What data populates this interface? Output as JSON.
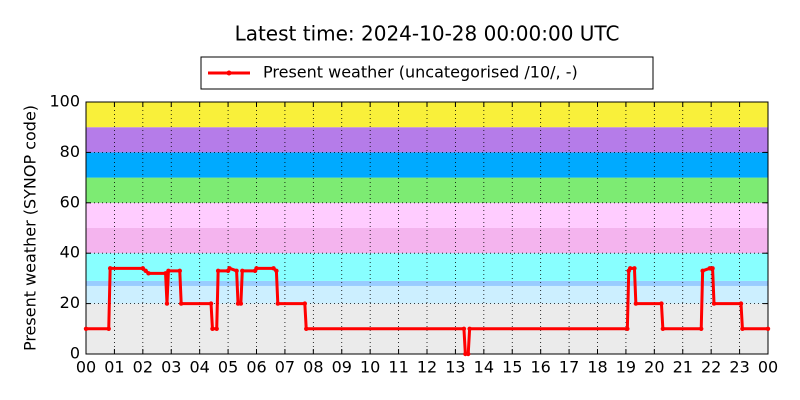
{
  "chart_data": {
    "type": "line",
    "title": "Latest time: 2024-10-28 00:00:00 UTC",
    "ylabel": "Present weather (SYNOP code)",
    "xlim": [
      0,
      24
    ],
    "xticks": [
      {
        "value": 0,
        "label": "00"
      },
      {
        "value": 1,
        "label": "01"
      },
      {
        "value": 2,
        "label": "02"
      },
      {
        "value": 3,
        "label": "03"
      },
      {
        "value": 4,
        "label": "04"
      },
      {
        "value": 5,
        "label": "05"
      },
      {
        "value": 6,
        "label": "06"
      },
      {
        "value": 7,
        "label": "07"
      },
      {
        "value": 8,
        "label": "08"
      },
      {
        "value": 9,
        "label": "09"
      },
      {
        "value": 10,
        "label": "10"
      },
      {
        "value": 11,
        "label": "11"
      },
      {
        "value": 12,
        "label": "12"
      },
      {
        "value": 13,
        "label": "13"
      },
      {
        "value": 14,
        "label": "14"
      },
      {
        "value": 15,
        "label": "15"
      },
      {
        "value": 16,
        "label": "16"
      },
      {
        "value": 17,
        "label": "17"
      },
      {
        "value": 18,
        "label": "18"
      },
      {
        "value": 19,
        "label": "19"
      },
      {
        "value": 20,
        "label": "20"
      },
      {
        "value": 21,
        "label": "21"
      },
      {
        "value": 22,
        "label": "22"
      },
      {
        "value": 23,
        "label": "23"
      },
      {
        "value": 24,
        "label": "00"
      }
    ],
    "ylim": [
      0,
      100
    ],
    "yticks": [
      0,
      20,
      40,
      60,
      80,
      100
    ],
    "grid": true,
    "bands": [
      {
        "from": 0,
        "to": 20,
        "color": "#ebebeb"
      },
      {
        "from": 20,
        "to": 27,
        "color": "#ccefff"
      },
      {
        "from": 27,
        "to": 29,
        "color": "#99ccff"
      },
      {
        "from": 29,
        "to": 40,
        "color": "#88ffff"
      },
      {
        "from": 40,
        "to": 50,
        "color": "#f4b4ee"
      },
      {
        "from": 50,
        "to": 60,
        "color": "#ffccff"
      },
      {
        "from": 60,
        "to": 70,
        "color": "#7deb73"
      },
      {
        "from": 70,
        "to": 80,
        "color": "#00aaff"
      },
      {
        "from": 80,
        "to": 90,
        "color": "#b57ce9"
      },
      {
        "from": 90,
        "to": 100,
        "color": "#f9f03a"
      }
    ],
    "series": [
      {
        "name": "Present weather (uncategorised /10/, -)",
        "color": "#ff0000",
        "x": [
          0,
          0.8,
          0.85,
          2.0,
          2.1,
          2.2,
          2.8,
          2.85,
          2.9,
          3.3,
          3.35,
          4.4,
          4.45,
          4.6,
          4.65,
          5.0,
          5.05,
          5.3,
          5.35,
          5.45,
          5.5,
          5.95,
          6.0,
          6.6,
          6.7,
          6.75,
          7.7,
          7.75,
          13.3,
          13.35,
          13.45,
          13.5,
          19.05,
          19.1,
          19.15,
          19.3,
          19.35,
          20.25,
          20.3,
          21.65,
          21.7,
          21.95,
          22.05,
          22.1,
          23.05,
          23.1,
          24
        ],
        "values": [
          10,
          10,
          34,
          34,
          33,
          32,
          32,
          20,
          33,
          33,
          20,
          20,
          10,
          10,
          33,
          33,
          34,
          33,
          20,
          20,
          33,
          33,
          34,
          34,
          33,
          20,
          20,
          10,
          10,
          0,
          0,
          10,
          10,
          33,
          34,
          34,
          20,
          20,
          10,
          10,
          33,
          34,
          34,
          20,
          20,
          10,
          10
        ]
      }
    ]
  }
}
